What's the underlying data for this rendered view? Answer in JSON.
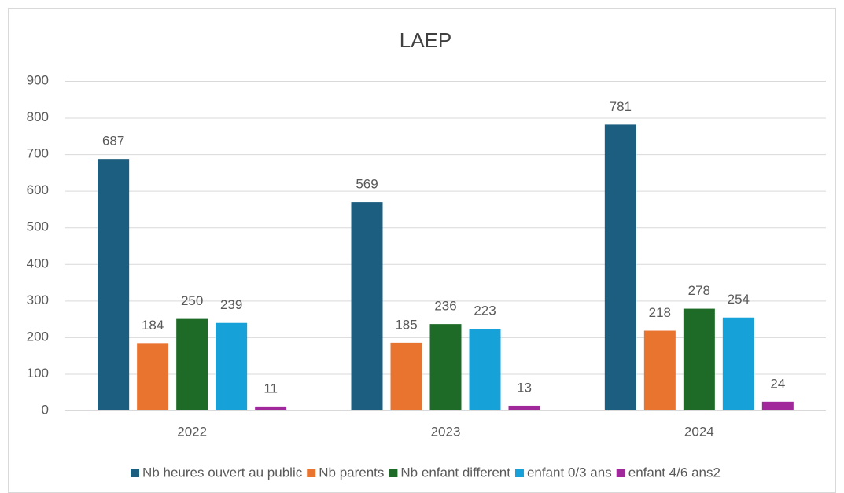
{
  "chart_data": {
    "type": "bar",
    "title": "LAEP",
    "categories": [
      "2022",
      "2023",
      "2024"
    ],
    "series": [
      {
        "name": "Nb heures ouvert au public",
        "color": "#1b5e7f",
        "values": [
          687,
          569,
          781
        ]
      },
      {
        "name": "Nb parents",
        "color": "#e87430",
        "values": [
          184,
          185,
          218
        ]
      },
      {
        "name": "Nb enfant different",
        "color": "#1d6b27",
        "values": [
          250,
          236,
          278
        ]
      },
      {
        "name": "enfant 0/3 ans",
        "color": "#16a1d8",
        "values": [
          239,
          223,
          254
        ]
      },
      {
        "name": "enfant 4/6 ans2",
        "color": "#a0289b",
        "values": [
          11,
          13,
          24
        ]
      }
    ],
    "ylim": [
      0,
      900
    ],
    "yticks": [
      0,
      100,
      200,
      300,
      400,
      500,
      600,
      700,
      800,
      900
    ],
    "grid": true,
    "legend": "bottom"
  }
}
